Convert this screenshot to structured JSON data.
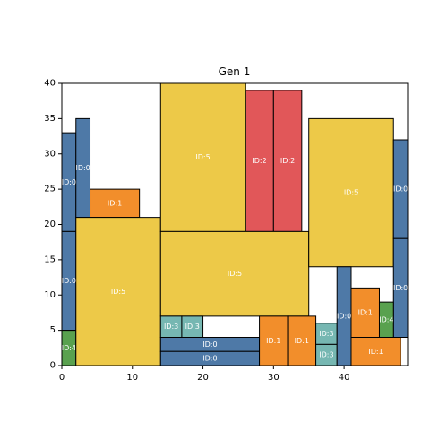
{
  "chart_data": {
    "type": "rectangles",
    "title": "Gen 1",
    "xlabel": "",
    "ylabel": "",
    "xlim": [
      0,
      49
    ],
    "ylim": [
      0,
      40
    ],
    "xticks": [
      0,
      10,
      20,
      30,
      40
    ],
    "yticks": [
      0,
      5,
      10,
      15,
      20,
      25,
      30,
      35,
      40
    ],
    "grid": false,
    "colors": {
      "ID:0": "#4e79a7",
      "ID:1": "#f28e2b",
      "ID:2": "#e15759",
      "ID:3": "#76b7b2",
      "ID:4": "#59a14f",
      "ID:5": "#edc948"
    },
    "rects": [
      {
        "label": "ID:0",
        "x": 0,
        "y": 19,
        "w": 2,
        "h": 14
      },
      {
        "label": "ID:0",
        "x": 2,
        "y": 21,
        "w": 2,
        "h": 14
      },
      {
        "label": "ID:0",
        "x": 0,
        "y": 5,
        "w": 2,
        "h": 14
      },
      {
        "label": "ID:4",
        "x": 0,
        "y": 0,
        "w": 2,
        "h": 5
      },
      {
        "label": "ID:1",
        "x": 4,
        "y": 21,
        "w": 7,
        "h": 4
      },
      {
        "label": "ID:5",
        "x": 2,
        "y": 0,
        "w": 12,
        "h": 21
      },
      {
        "label": "ID:5",
        "x": 14,
        "y": 19,
        "w": 12,
        "h": 21
      },
      {
        "label": "ID:2",
        "x": 26,
        "y": 19,
        "w": 4,
        "h": 20
      },
      {
        "label": "ID:2",
        "x": 30,
        "y": 19,
        "w": 4,
        "h": 20
      },
      {
        "label": "ID:5",
        "x": 14,
        "y": 7,
        "w": 21,
        "h": 12
      },
      {
        "label": "ID:5",
        "x": 35,
        "y": 14,
        "w": 12,
        "h": 21
      },
      {
        "label": "ID:0",
        "x": 47,
        "y": 18,
        "w": 2,
        "h": 14
      },
      {
        "label": "ID:0",
        "x": 47,
        "y": 4,
        "w": 2,
        "h": 14
      },
      {
        "label": "ID:3",
        "x": 14,
        "y": 4,
        "w": 3,
        "h": 3
      },
      {
        "label": "ID:3",
        "x": 17,
        "y": 4,
        "w": 3,
        "h": 3
      },
      {
        "label": "ID:0",
        "x": 14,
        "y": 2,
        "w": 14,
        "h": 2
      },
      {
        "label": "ID:0",
        "x": 14,
        "y": 0,
        "w": 14,
        "h": 2
      },
      {
        "label": "ID:1",
        "x": 28,
        "y": 0,
        "w": 4,
        "h": 7
      },
      {
        "label": "ID:1",
        "x": 32,
        "y": 0,
        "w": 4,
        "h": 7
      },
      {
        "label": "ID:3",
        "x": 36,
        "y": 3,
        "w": 3,
        "h": 3
      },
      {
        "label": "ID:3",
        "x": 36,
        "y": 0,
        "w": 3,
        "h": 3
      },
      {
        "label": "ID:0",
        "x": 39,
        "y": 0,
        "w": 2,
        "h": 14
      },
      {
        "label": "ID:1",
        "x": 41,
        "y": 4,
        "w": 4,
        "h": 7
      },
      {
        "label": "ID:4",
        "x": 45,
        "y": 4,
        "w": 2,
        "h": 5
      },
      {
        "label": "ID:1",
        "x": 41,
        "y": 0,
        "w": 7,
        "h": 4
      }
    ]
  }
}
